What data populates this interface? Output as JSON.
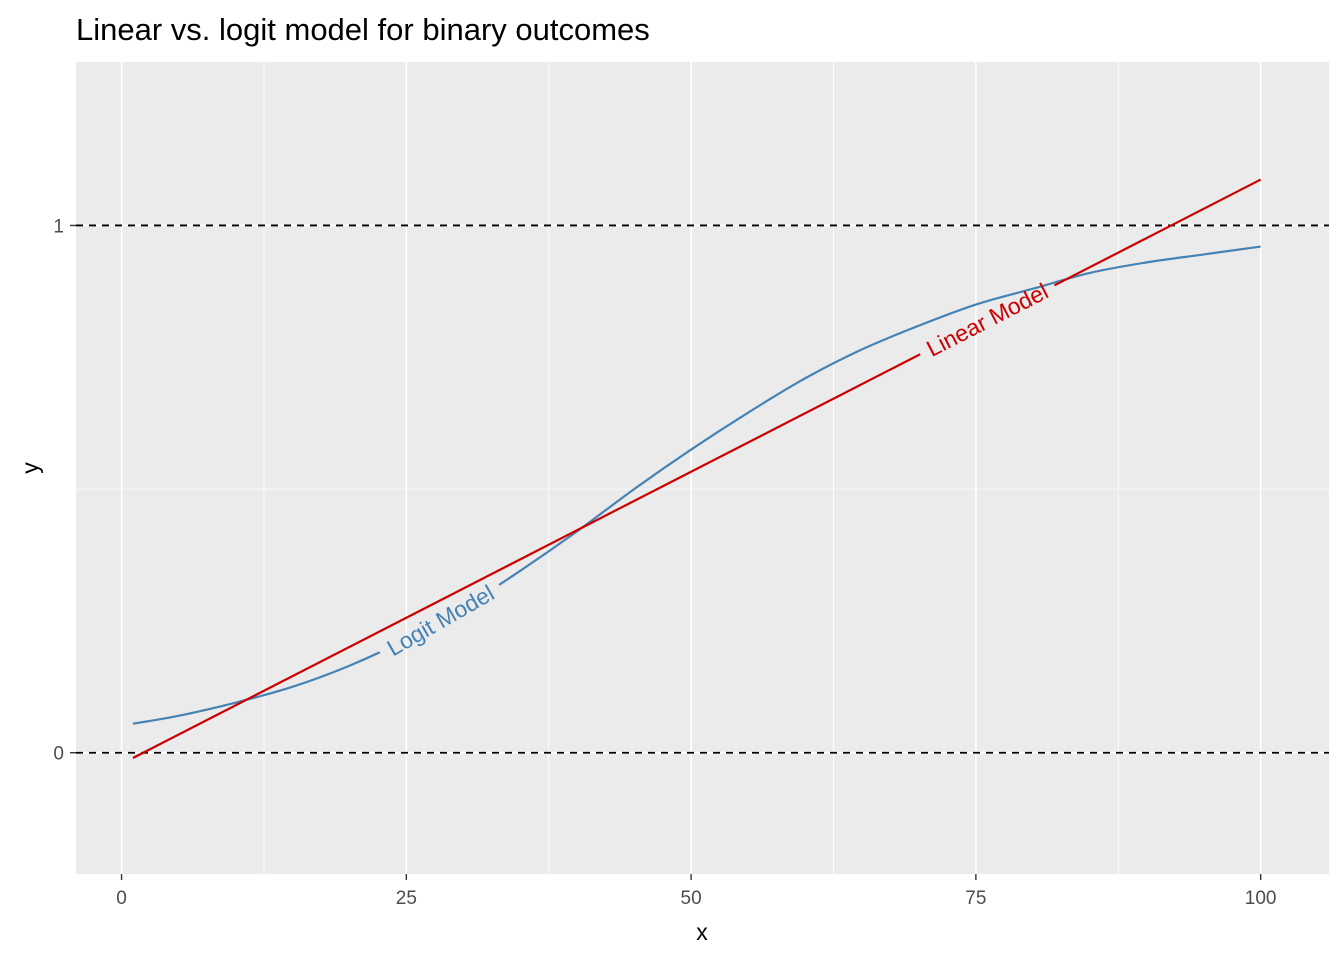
{
  "chart_data": {
    "type": "line",
    "title": "Linear vs. logit model for binary outcomes",
    "xlabel": "x",
    "ylabel": "y",
    "xlim": [
      -4,
      106
    ],
    "ylim": [
      -0.23,
      1.31
    ],
    "x_ticks": [
      0,
      25,
      50,
      75,
      100
    ],
    "x_tick_labels": [
      "0",
      "25",
      "50",
      "75",
      "100"
    ],
    "y_ticks": [
      0,
      1
    ],
    "y_tick_labels": [
      "0",
      "1"
    ],
    "y_minor_grid": [
      0.5
    ],
    "x_minor_grid": [
      12.5,
      37.5,
      62.5,
      87.5
    ],
    "grid": true,
    "reference_lines": [
      {
        "y": 0,
        "style": "dashed"
      },
      {
        "y": 1,
        "style": "dashed"
      }
    ],
    "series": [
      {
        "name": "Logit Model",
        "color": "#4682b4",
        "label_x": 28,
        "x": [
          1,
          5,
          10,
          15,
          20,
          25,
          30,
          35,
          40,
          45,
          50,
          55,
          60,
          65,
          70,
          75,
          80,
          85,
          90,
          95,
          100
        ],
        "y": [
          0.055,
          0.07,
          0.095,
          0.125,
          0.165,
          0.215,
          0.275,
          0.345,
          0.42,
          0.5,
          0.575,
          0.645,
          0.71,
          0.765,
          0.81,
          0.85,
          0.88,
          0.91,
          0.93,
          0.945,
          0.96
        ]
      },
      {
        "name": "Linear Model",
        "color": "#cc0000",
        "label_x": 76,
        "x": [
          1,
          100
        ],
        "y": [
          -0.01,
          1.087
        ]
      }
    ]
  }
}
